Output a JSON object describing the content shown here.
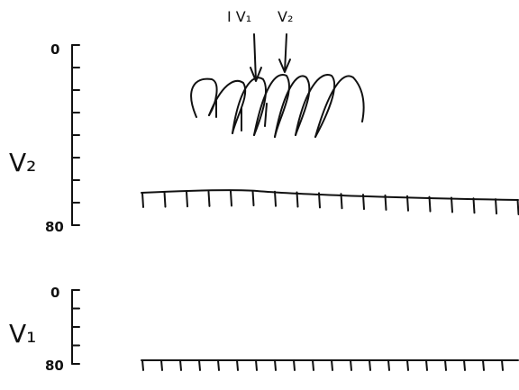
{
  "panels": [
    {
      "label": "V₂",
      "scale": {
        "top": "0",
        "bottom": "80"
      }
    },
    {
      "label": "V₁",
      "scale": {
        "top": "0",
        "bottom": "80"
      }
    }
  ],
  "arrows": [
    {
      "label": "I V₁"
    },
    {
      "label": "V₂"
    }
  ]
}
